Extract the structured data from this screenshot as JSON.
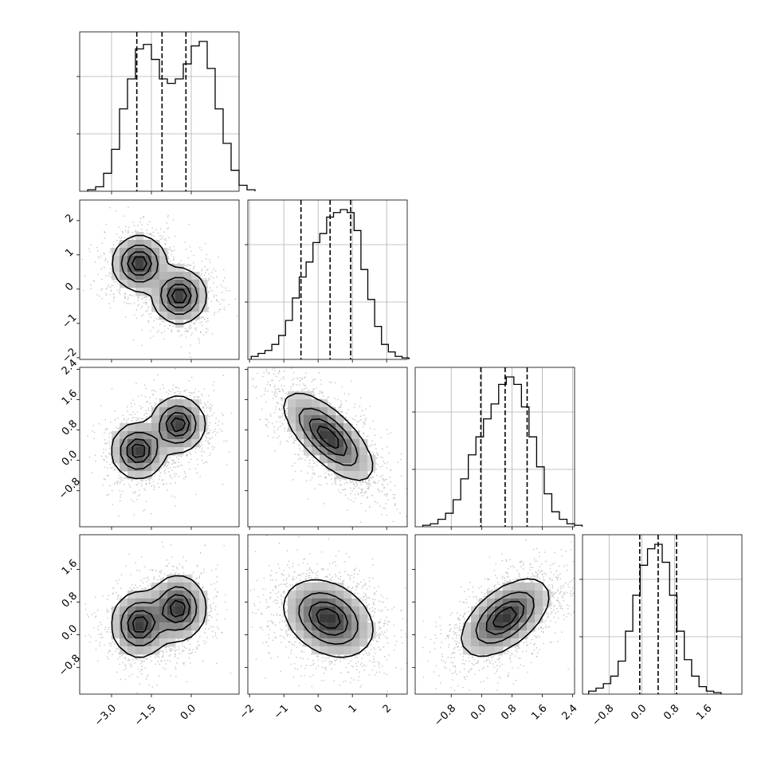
{
  "chart_data": {
    "type": "corner",
    "title": "",
    "parameters": [
      {
        "name": "",
        "range": [
          -4.2,
          1.8
        ],
        "ticks": [
          -3.0,
          -1.5,
          0.0
        ],
        "tick_labels": [
          "−3.0",
          "−1.5",
          "0.0"
        ],
        "quantiles": [
          -2.05,
          -1.1,
          -0.2
        ]
      },
      {
        "name": "",
        "range": [
          -2.05,
          2.6
        ],
        "ticks": [
          -2,
          -1,
          0,
          1,
          2
        ],
        "tick_labels": [
          "−2",
          "−1",
          "0",
          "1",
          "2"
        ],
        "quantiles": [
          -0.5,
          0.35,
          0.95
        ]
      },
      {
        "name": "",
        "range": [
          -1.75,
          2.45
        ],
        "ticks": [
          -0.8,
          0.0,
          0.8,
          1.6,
          2.4
        ],
        "tick_labels": [
          "−0.8",
          "0.0",
          "0.8",
          "1.6",
          "2.4"
        ],
        "quantiles": [
          -0.02,
          0.62,
          1.2
        ]
      },
      {
        "name": "",
        "range": [
          -1.45,
          2.45
        ],
        "ticks": [
          -0.8,
          0.0,
          0.8,
          1.6
        ],
        "tick_labels": [
          "−0.8",
          "0.0",
          "0.8",
          "1.6"
        ],
        "quantiles": [
          -0.05,
          0.4,
          0.85
        ]
      }
    ],
    "histograms": [
      {
        "param": 0,
        "bin_start": -3.9,
        "bin_width": 0.3,
        "counts": [
          0.01,
          0.03,
          0.12,
          0.28,
          0.55,
          0.75,
          0.95,
          0.98,
          0.88,
          0.75,
          0.72,
          0.75,
          0.85,
          0.97,
          1.0,
          0.82,
          0.55,
          0.32,
          0.14,
          0.04,
          0.01
        ]
      },
      {
        "param": 1,
        "bin_start": -1.95,
        "bin_width": 0.2,
        "counts": [
          0.02,
          0.04,
          0.06,
          0.1,
          0.16,
          0.26,
          0.41,
          0.55,
          0.65,
          0.78,
          0.84,
          0.95,
          0.98,
          1.0,
          0.98,
          0.86,
          0.6,
          0.4,
          0.22,
          0.1,
          0.05,
          0.02,
          0.01
        ]
      },
      {
        "param": 2,
        "bin_start": -1.55,
        "bin_width": 0.2,
        "counts": [
          0.01,
          0.02,
          0.05,
          0.09,
          0.18,
          0.32,
          0.48,
          0.6,
          0.72,
          0.82,
          0.95,
          1.0,
          0.95,
          0.8,
          0.6,
          0.4,
          0.22,
          0.1,
          0.05,
          0.02,
          0.01
        ]
      },
      {
        "param": 3,
        "bin_start": -1.3,
        "bin_width": 0.18,
        "counts": [
          0.02,
          0.04,
          0.07,
          0.12,
          0.22,
          0.42,
          0.66,
          0.86,
          0.97,
          1.0,
          0.88,
          0.66,
          0.42,
          0.23,
          0.12,
          0.05,
          0.02,
          0.01
        ]
      }
    ],
    "pairs": [
      {
        "x_param": 0,
        "y_param": 1,
        "modes": [
          {
            "mx": -1.95,
            "my": 0.75,
            "sx": 0.48,
            "sy": 0.38,
            "r": 0.0,
            "w": 0.5
          },
          {
            "mx": -0.45,
            "my": -0.2,
            "sx": 0.48,
            "sy": 0.38,
            "r": 0.0,
            "w": 0.5
          }
        ]
      },
      {
        "x_param": 0,
        "y_param": 2,
        "modes": [
          {
            "mx": -2.0,
            "my": 0.25,
            "sx": 0.48,
            "sy": 0.35,
            "r": 0.0,
            "w": 0.5
          },
          {
            "mx": -0.5,
            "my": 0.95,
            "sx": 0.48,
            "sy": 0.35,
            "r": 0.0,
            "w": 0.5
          }
        ]
      },
      {
        "x_param": 1,
        "y_param": 2,
        "modes": [
          {
            "mx": 0.3,
            "my": 0.62,
            "sx": 0.62,
            "sy": 0.55,
            "r": -0.7,
            "w": 1.0
          }
        ]
      },
      {
        "x_param": 0,
        "y_param": 3,
        "modes": [
          {
            "mx": -1.95,
            "my": 0.25,
            "sx": 0.5,
            "sy": 0.38,
            "r": 0.0,
            "w": 0.5
          },
          {
            "mx": -0.5,
            "my": 0.65,
            "sx": 0.5,
            "sy": 0.38,
            "r": 0.0,
            "w": 0.5
          }
        ]
      },
      {
        "x_param": 1,
        "y_param": 3,
        "modes": [
          {
            "mx": 0.3,
            "my": 0.4,
            "sx": 0.62,
            "sy": 0.45,
            "r": -0.3,
            "w": 1.0
          }
        ]
      },
      {
        "x_param": 2,
        "y_param": 3,
        "modes": [
          {
            "mx": 0.62,
            "my": 0.42,
            "sx": 0.55,
            "sy": 0.45,
            "r": 0.55,
            "w": 1.0
          }
        ]
      }
    ],
    "contour_levels": [
      0.118,
      0.393,
      0.675,
      0.865
    ],
    "grid": true,
    "quantile_style": "dashed"
  }
}
